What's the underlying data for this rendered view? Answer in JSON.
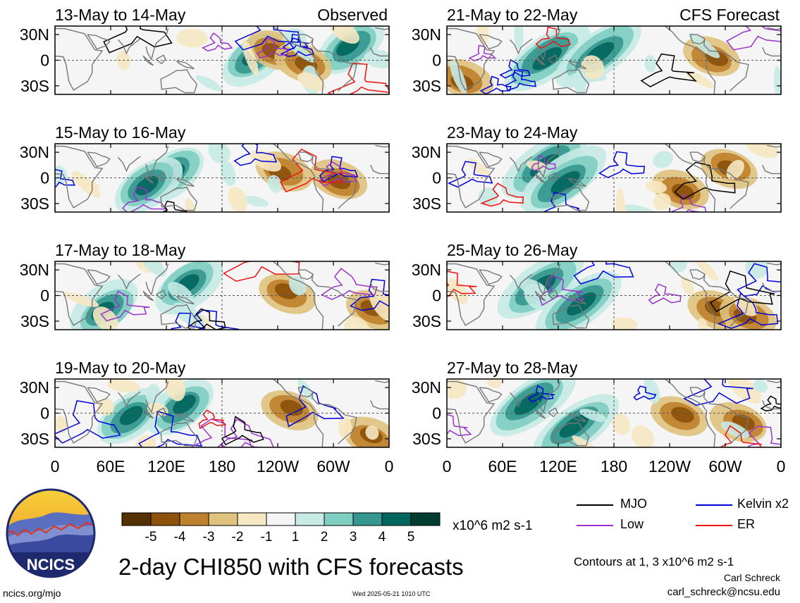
{
  "labels": {
    "observed": "Observed",
    "forecast": "CFS Forecast",
    "main_title": "2-day CHI850 with CFS forecasts",
    "unit": "x10^6 m2 s-1",
    "contour_note": "Contours at 1, 3 x10^6 m2 s-1",
    "author": "Carl Schreck",
    "email": "carl_schreck@ncsu.edu",
    "site": "ncics.org/mjo",
    "stamp": "Wed 2025-05-21 1010 UTC",
    "logo_text": "NCICS"
  },
  "colors": {
    "mjo": "#000000",
    "kelvin": "#0000dd",
    "low": "#9a32cd",
    "er": "#ee1111",
    "land": "#777777"
  },
  "colorbar": {
    "colors": [
      "#543005",
      "#8c510a",
      "#bf812d",
      "#dfc27d",
      "#f6e8c3",
      "#f5f5f5",
      "#c7eae5",
      "#80cdc1",
      "#35978f",
      "#01665e",
      "#003c30"
    ],
    "tick_labels": [
      "-5",
      "-4",
      "-3",
      "-2",
      "-1",
      "1",
      "2",
      "3",
      "4",
      "5"
    ]
  },
  "legend": [
    {
      "name": "MJO",
      "color_key": "mjo"
    },
    {
      "name": "Kelvin x2",
      "color_key": "kelvin"
    },
    {
      "name": "Low",
      "color_key": "low"
    },
    {
      "name": "ER",
      "color_key": "er"
    }
  ],
  "chart_data": {
    "type": "heatmap",
    "variable": "2-day CHI850",
    "units": "x10^6 m2 s-1",
    "contour_levels": [
      1,
      3
    ],
    "lat_ticks": [
      "30N",
      "0",
      "30S"
    ],
    "lon_ticks": [
      "0",
      "60E",
      "120E",
      "180",
      "120W",
      "60W",
      "0"
    ],
    "lon_range": [
      0,
      360
    ],
    "lat_range": [
      -40,
      40
    ],
    "panels": [
      {
        "period": "13-May to 14-May",
        "column": "observed",
        "row": 0
      },
      {
        "period": "15-May to 16-May",
        "column": "observed",
        "row": 1
      },
      {
        "period": "17-May to 18-May",
        "column": "observed",
        "row": 2
      },
      {
        "period": "19-May to 20-May",
        "column": "observed",
        "row": 3
      },
      {
        "period": "21-May to 22-May",
        "column": "forecast",
        "row": 0
      },
      {
        "period": "23-May to 24-May",
        "column": "forecast",
        "row": 1
      },
      {
        "period": "25-May to 26-May",
        "column": "forecast",
        "row": 2
      },
      {
        "period": "27-May to 28-May",
        "column": "forecast",
        "row": 3
      }
    ]
  }
}
